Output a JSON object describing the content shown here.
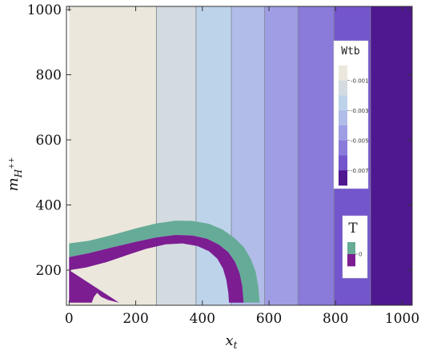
{
  "chart_data": {
    "type": "heatmap",
    "x_axis": {
      "label": "x",
      "label_sub": "t",
      "range": [
        -8,
        1030
      ],
      "ticks": [
        "0",
        "200",
        "400",
        "600",
        "800",
        "1000"
      ]
    },
    "y_axis": {
      "label": "m",
      "label_sub": "H",
      "label_sup": "++",
      "range": [
        92,
        1010
      ],
      "ticks": [
        "200",
        "400",
        "600",
        "800",
        "1000"
      ]
    },
    "wtb_bands": [
      {
        "x0": 0,
        "x1": 262,
        "color": "#ebe7dc"
      },
      {
        "x0": 262,
        "x1": 381,
        "color": "#d3dbe0"
      },
      {
        "x0": 381,
        "x1": 487,
        "color": "#bdd3ea"
      },
      {
        "x0": 487,
        "x1": 587,
        "color": "#b1bde8"
      },
      {
        "x0": 587,
        "x1": 687,
        "color": "#9f9ee5"
      },
      {
        "x0": 687,
        "x1": 795,
        "color": "#8a7ad9"
      },
      {
        "x0": 795,
        "x1": 905,
        "color": "#7355cc"
      },
      {
        "x0": 905,
        "x1": 1030,
        "color": "#4f1790"
      }
    ],
    "t_region": {
      "upper_color": "#66ab97",
      "lower_color": "#7c1d92",
      "outer_arc": [
        [
          0,
          282
        ],
        [
          60,
          290
        ],
        [
          130,
          308
        ],
        [
          200,
          328
        ],
        [
          260,
          343
        ],
        [
          320,
          352
        ],
        [
          370,
          351
        ],
        [
          420,
          342
        ],
        [
          460,
          325
        ],
        [
          495,
          300
        ],
        [
          525,
          270
        ],
        [
          545,
          235
        ],
        [
          560,
          195
        ],
        [
          568,
          150
        ],
        [
          572,
          100
        ]
      ],
      "mid_arc": [
        [
          0,
          240
        ],
        [
          60,
          252
        ],
        [
          130,
          270
        ],
        [
          200,
          287
        ],
        [
          260,
          300
        ],
        [
          320,
          308
        ],
        [
          370,
          306
        ],
        [
          415,
          296
        ],
        [
          450,
          278
        ],
        [
          478,
          255
        ],
        [
          498,
          225
        ],
        [
          512,
          190
        ],
        [
          520,
          150
        ],
        [
          524,
          100
        ]
      ],
      "inner_arc": [
        [
          0,
          200
        ],
        [
          50,
          208
        ],
        [
          110,
          224
        ],
        [
          170,
          245
        ],
        [
          230,
          265
        ],
        [
          290,
          279
        ],
        [
          340,
          282
        ],
        [
          385,
          274
        ],
        [
          420,
          258
        ],
        [
          445,
          235
        ],
        [
          462,
          205
        ],
        [
          472,
          170
        ],
        [
          478,
          130
        ],
        [
          480,
          100
        ]
      ],
      "inner_bottom": [
        [
          150,
          100
        ],
        [
          118,
          108
        ],
        [
          96,
          118
        ],
        [
          84,
          130
        ],
        [
          75,
          118
        ],
        [
          68,
          100
        ]
      ]
    },
    "legends": [
      {
        "title": "Wtb",
        "tick_labels": [
          "-0.001",
          "-0.003",
          "-0.005",
          "-0.007"
        ],
        "colors": [
          "#ebe7dc",
          "#d3dbe0",
          "#bdd3ea",
          "#b1bde8",
          "#9f9ee5",
          "#8a7ad9",
          "#7355cc",
          "#4f1790"
        ]
      },
      {
        "title": "T",
        "tick_labels": [
          "0"
        ],
        "colors": [
          "#66ab97",
          "#7c1d92"
        ]
      }
    ]
  }
}
